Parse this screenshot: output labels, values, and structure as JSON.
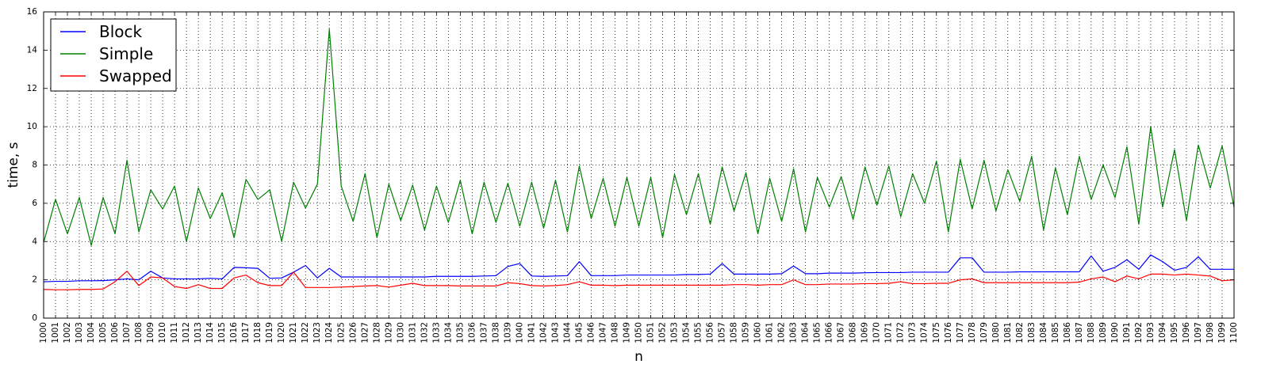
{
  "chart_data": {
    "type": "line",
    "title": "",
    "xlabel": "n",
    "ylabel": "time, s",
    "xlim": [
      1000,
      1100
    ],
    "ylim": [
      0,
      16
    ],
    "yticks": [
      0,
      2,
      4,
      6,
      8,
      10,
      12,
      14,
      16
    ],
    "grid": true,
    "legend_position": "top-left",
    "x_start": 1000,
    "x_end": 1100,
    "series": [
      {
        "name": "Block",
        "color": "#0000ff",
        "values": [
          1.9,
          1.92,
          1.92,
          1.95,
          1.95,
          1.96,
          2.0,
          2.05,
          2.0,
          2.45,
          2.1,
          2.05,
          2.05,
          2.05,
          2.08,
          2.05,
          2.65,
          2.63,
          2.6,
          2.08,
          2.1,
          2.4,
          2.75,
          2.1,
          2.6,
          2.15,
          2.15,
          2.15,
          2.15,
          2.15,
          2.15,
          2.15,
          2.15,
          2.18,
          2.18,
          2.18,
          2.18,
          2.2,
          2.22,
          2.7,
          2.85,
          2.2,
          2.18,
          2.2,
          2.22,
          2.95,
          2.22,
          2.22,
          2.22,
          2.25,
          2.25,
          2.25,
          2.25,
          2.25,
          2.28,
          2.28,
          2.3,
          2.85,
          2.3,
          2.3,
          2.3,
          2.3,
          2.32,
          2.72,
          2.32,
          2.32,
          2.35,
          2.35,
          2.35,
          2.37,
          2.38,
          2.38,
          2.38,
          2.4,
          2.4,
          2.4,
          2.4,
          3.15,
          3.15,
          2.4,
          2.4,
          2.4,
          2.42,
          2.42,
          2.42,
          2.42,
          2.42,
          2.42,
          3.25,
          2.45,
          2.65,
          3.05,
          2.55,
          3.3,
          2.95,
          2.5,
          2.65,
          3.2,
          2.55,
          2.55,
          2.55
        ]
      },
      {
        "name": "Simple",
        "color": "#008000",
        "values": [
          3.95,
          6.2,
          4.4,
          6.3,
          3.8,
          6.3,
          4.4,
          8.25,
          4.5,
          6.7,
          5.7,
          6.9,
          4.0,
          6.8,
          5.2,
          6.55,
          4.2,
          7.25,
          6.2,
          6.7,
          4.0,
          7.1,
          5.75,
          7.0,
          15.1,
          6.9,
          5.05,
          7.55,
          4.2,
          7.0,
          5.1,
          6.95,
          4.6,
          6.9,
          5.0,
          7.2,
          4.4,
          7.1,
          5.0,
          7.05,
          4.8,
          7.1,
          4.7,
          7.2,
          4.5,
          7.95,
          5.2,
          7.3,
          4.8,
          7.35,
          4.8,
          7.35,
          4.2,
          7.5,
          5.4,
          7.55,
          4.9,
          7.9,
          5.6,
          7.6,
          4.4,
          7.3,
          5.05,
          7.8,
          4.5,
          7.35,
          5.8,
          7.4,
          5.15,
          7.9,
          5.9,
          7.95,
          5.3,
          7.55,
          6.0,
          8.2,
          4.5,
          8.3,
          5.7,
          8.25,
          5.6,
          7.75,
          6.1,
          8.45,
          4.6,
          7.85,
          5.4,
          8.45,
          6.2,
          8.0,
          6.3,
          8.95,
          4.9,
          10.0,
          5.8,
          8.8,
          5.1,
          9.05,
          6.8,
          9.0,
          5.8
        ]
      },
      {
        "name": "Swapped",
        "color": "#ff0000",
        "values": [
          1.5,
          1.48,
          1.48,
          1.5,
          1.5,
          1.52,
          1.9,
          2.45,
          1.7,
          2.15,
          2.1,
          1.65,
          1.55,
          1.75,
          1.55,
          1.55,
          2.1,
          2.25,
          1.85,
          1.7,
          1.7,
          2.4,
          1.6,
          1.6,
          1.6,
          1.62,
          1.65,
          1.68,
          1.7,
          1.62,
          1.72,
          1.82,
          1.7,
          1.7,
          1.7,
          1.68,
          1.68,
          1.68,
          1.68,
          1.85,
          1.8,
          1.7,
          1.68,
          1.7,
          1.75,
          1.9,
          1.72,
          1.72,
          1.7,
          1.72,
          1.72,
          1.72,
          1.72,
          1.72,
          1.72,
          1.72,
          1.72,
          1.72,
          1.75,
          1.75,
          1.72,
          1.75,
          1.75,
          2.0,
          1.75,
          1.75,
          1.78,
          1.78,
          1.78,
          1.8,
          1.8,
          1.82,
          1.9,
          1.8,
          1.8,
          1.82,
          1.82,
          2.0,
          2.05,
          1.85,
          1.85,
          1.85,
          1.85,
          1.85,
          1.85,
          1.85,
          1.85,
          1.88,
          2.05,
          2.15,
          1.9,
          2.2,
          2.05,
          2.3,
          2.3,
          2.25,
          2.3,
          2.25,
          2.2,
          1.95,
          2.0
        ]
      }
    ]
  }
}
